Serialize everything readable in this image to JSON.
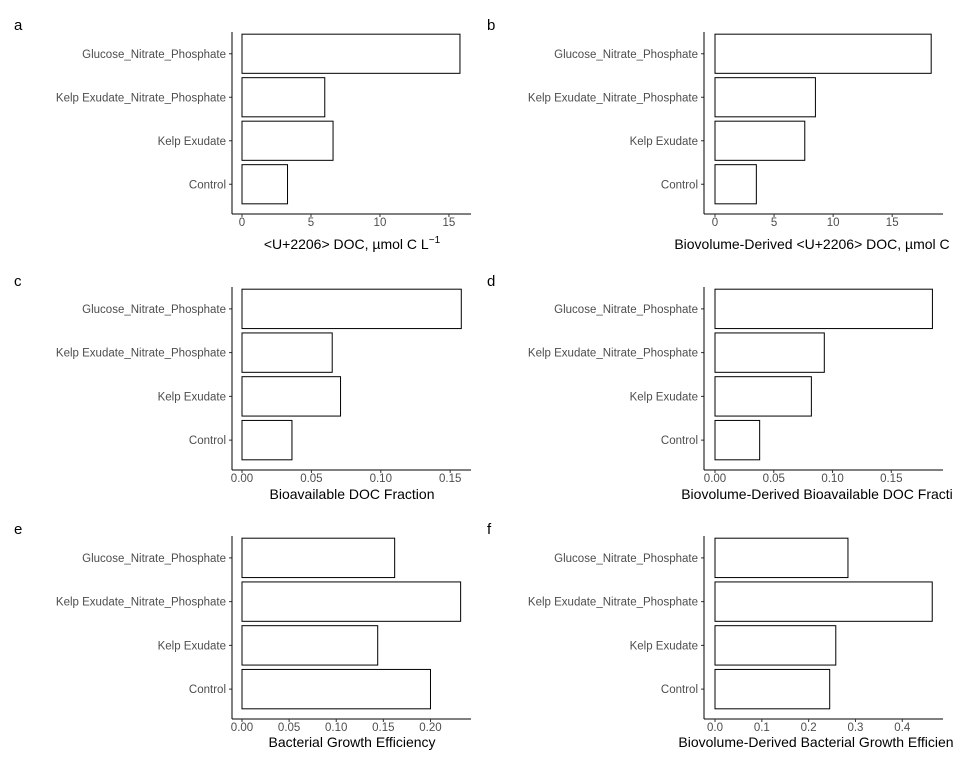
{
  "chart_data": [
    {
      "type": "bar",
      "orientation": "horizontal",
      "panel": "a",
      "categories": [
        "Control",
        "Kelp Exudate",
        "Kelp Exudate_Nitrate_Phosphate",
        "Glucose_Nitrate_Phosphate"
      ],
      "values": [
        3.3,
        6.6,
        6.0,
        15.8
      ],
      "xlabel": "<U+2206> DOC, µmol C L",
      "xlabel_sup": "−1",
      "xlim": [
        0,
        16.6
      ],
      "ticks": [
        0,
        5,
        10,
        15
      ],
      "tick_labels": [
        "0",
        "5",
        "10",
        "15"
      ]
    },
    {
      "type": "bar",
      "orientation": "horizontal",
      "panel": "b",
      "categories": [
        "Control",
        "Kelp Exudate",
        "Kelp Exudate_Nitrate_Phosphate",
        "Glucose_Nitrate_Phosphate"
      ],
      "values": [
        3.5,
        7.6,
        8.5,
        18.3
      ],
      "xlabel": "Biovolume-Derived <U+2206> DOC, µmol C",
      "xlim": [
        0,
        19.3
      ],
      "ticks": [
        0,
        5,
        10,
        15
      ],
      "tick_labels": [
        "0",
        "5",
        "10",
        "15"
      ]
    },
    {
      "type": "bar",
      "orientation": "horizontal",
      "panel": "c",
      "categories": [
        "Control",
        "Kelp Exudate",
        "Kelp Exudate_Nitrate_Phosphate",
        "Glucose_Nitrate_Phosphate"
      ],
      "values": [
        0.036,
        0.071,
        0.065,
        0.158
      ],
      "xlabel": "Bioavailable DOC Fraction",
      "xlim": [
        0,
        0.165
      ],
      "ticks": [
        0,
        0.05,
        0.1,
        0.15
      ],
      "tick_labels": [
        "0.00",
        "0.05",
        "0.10",
        "0.15"
      ]
    },
    {
      "type": "bar",
      "orientation": "horizontal",
      "panel": "d",
      "categories": [
        "Control",
        "Kelp Exudate",
        "Kelp Exudate_Nitrate_Phosphate",
        "Glucose_Nitrate_Phosphate"
      ],
      "values": [
        0.038,
        0.082,
        0.093,
        0.185
      ],
      "xlabel": "Biovolume-Derived Bioavailable DOC Fracti",
      "xlim": [
        0,
        0.194
      ],
      "ticks": [
        0,
        0.05,
        0.1,
        0.15
      ],
      "tick_labels": [
        "0.00",
        "0.05",
        "0.10",
        "0.15"
      ]
    },
    {
      "type": "bar",
      "orientation": "horizontal",
      "panel": "e",
      "categories": [
        "Control",
        "Kelp Exudate",
        "Kelp Exudate_Nitrate_Phosphate",
        "Glucose_Nitrate_Phosphate"
      ],
      "values": [
        0.2,
        0.144,
        0.232,
        0.162
      ],
      "xlabel": "Bacterial Growth Efficiency",
      "xlim": [
        0,
        0.243
      ],
      "ticks": [
        0,
        0.05,
        0.1,
        0.15,
        0.2
      ],
      "tick_labels": [
        "0.00",
        "0.05",
        "0.10",
        "0.15",
        "0.20"
      ]
    },
    {
      "type": "bar",
      "orientation": "horizontal",
      "panel": "f",
      "categories": [
        "Control",
        "Kelp Exudate",
        "Kelp Exudate_Nitrate_Phosphate",
        "Glucose_Nitrate_Phosphate"
      ],
      "values": [
        0.245,
        0.258,
        0.464,
        0.284
      ],
      "xlabel": "Biovolume-Derived Bacterial Growth Efficien",
      "xlim": [
        0,
        0.487
      ],
      "ticks": [
        0,
        0.1,
        0.2,
        0.3,
        0.4
      ],
      "tick_labels": [
        "0.0",
        "0.1",
        "0.2",
        "0.3",
        "0.4"
      ]
    }
  ]
}
